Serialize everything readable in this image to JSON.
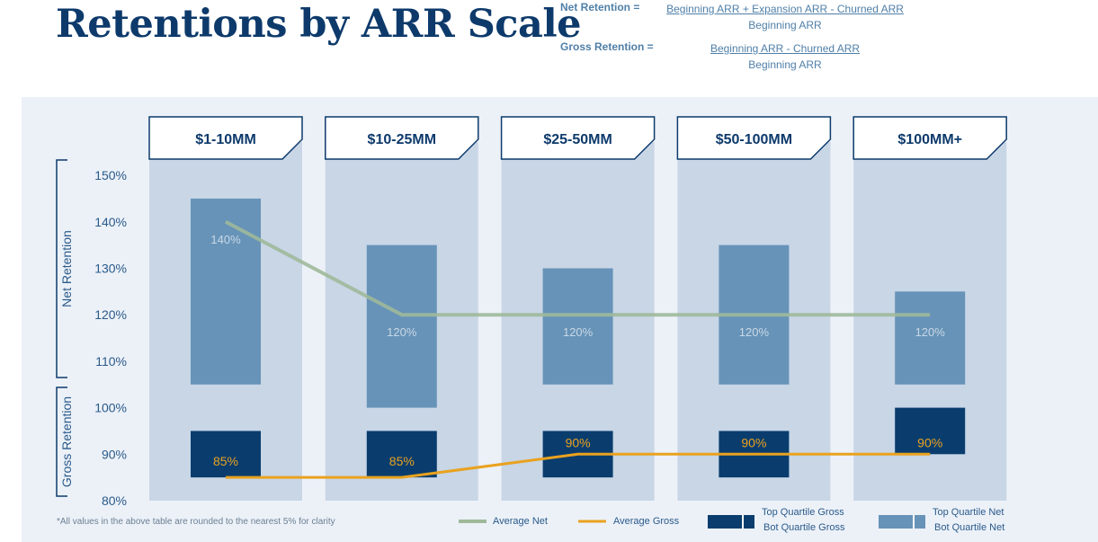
{
  "title": "Retentions by ARR Scale",
  "formulas": {
    "net": {
      "label": "Net Retention =",
      "numerator": "Beginning ARR + Expansion ARR - Churned ARR",
      "denominator": "Beginning ARR"
    },
    "gross": {
      "label": "Gross Retention =",
      "numerator": "Beginning ARR - Churned ARR",
      "denominator": "Beginning ARR"
    }
  },
  "footnote": "*All values in the above table are rounded to the nearest 5% for clarity",
  "colors": {
    "panel": "#ecf1f8",
    "column": "#c8d6e6",
    "net_bar": "#6793b8",
    "gross_bar": "#0a3d6e",
    "avg_net": "#9fb99a",
    "avg_gross": "#e9a21f",
    "navy": "#0d3a6b",
    "axis_text": "#2a5a8a"
  },
  "chart_data": {
    "type": "bar",
    "categories": [
      "$1-10MM",
      "$10-25MM",
      "$25-50MM",
      "$50-100MM",
      "$100MM+"
    ],
    "ylim": [
      80,
      150
    ],
    "yticks": [
      80,
      90,
      100,
      110,
      120,
      130,
      140,
      150
    ],
    "y_tick_labels": [
      "80%",
      "90%",
      "100%",
      "110%",
      "120%",
      "130%",
      "140%",
      "150%"
    ],
    "axis_groups": [
      {
        "label": "Net Retention",
        "range": [
          105,
          155
        ]
      },
      {
        "label": "Gross Retention",
        "range": [
          80,
          102
        ]
      }
    ],
    "net_ranges": [
      {
        "low": 105,
        "high": 145
      },
      {
        "low": 100,
        "high": 135
      },
      {
        "low": 105,
        "high": 130
      },
      {
        "low": 105,
        "high": 135
      },
      {
        "low": 105,
        "high": 125
      }
    ],
    "gross_ranges": [
      {
        "low": 85,
        "high": 95
      },
      {
        "low": 85,
        "high": 95
      },
      {
        "low": 85,
        "high": 95
      },
      {
        "low": 85,
        "high": 95
      },
      {
        "low": 90,
        "high": 100
      }
    ],
    "avg_net": [
      140,
      120,
      120,
      120,
      120
    ],
    "avg_gross": [
      85,
      85,
      90,
      90,
      90
    ],
    "avg_net_labels": [
      "140%",
      "120%",
      "120%",
      "120%",
      "120%"
    ],
    "avg_gross_labels": [
      "85%",
      "85%",
      "90%",
      "90%",
      "90%"
    ],
    "legend": {
      "avg_net": "Average Net",
      "avg_gross": "Average Gross",
      "gross_top": "Top Quartile Gross",
      "gross_bot": "Bot Quartile Gross",
      "net_top": "Top Quartile Net",
      "net_bot": "Bot Quartile Net"
    }
  }
}
